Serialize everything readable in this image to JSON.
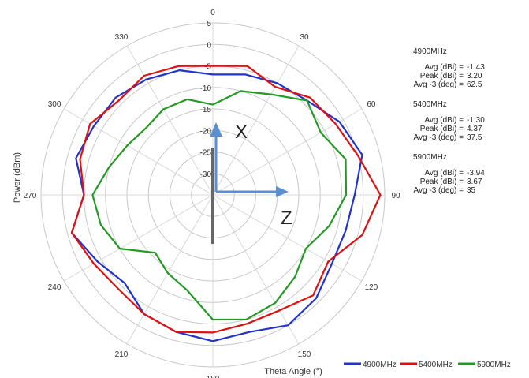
{
  "chart_data": {
    "type": "polar-line",
    "title": "",
    "xlabel": "Theta Angle (°)",
    "ylabel": "Power (dBm)",
    "rlim": [
      -35,
      5
    ],
    "ring_values": [
      -30,
      -25,
      -20,
      -15,
      -10,
      -5,
      0,
      5
    ],
    "ring_labels": [
      "-30",
      "-25",
      "-20",
      "-15",
      "-10",
      "-5",
      "0",
      "5"
    ],
    "angle_labels": [
      "0",
      "30",
      "60",
      "90",
      "120",
      "150",
      "180",
      "210",
      "240",
      "270",
      "300",
      "330"
    ],
    "legend_position": "bottom-right",
    "arrow_labels": {
      "x": "X",
      "z": "Z"
    },
    "series": [
      {
        "name": "4900MHz",
        "color": "#2233cc",
        "angles": [
          0,
          15,
          30,
          45,
          60,
          75,
          90,
          105,
          120,
          135,
          150,
          165,
          180,
          195,
          210,
          225,
          240,
          255,
          270,
          285,
          300,
          315,
          330,
          345
        ],
        "values": [
          -7,
          -6,
          -5,
          -4,
          -1,
          1,
          -2,
          -3,
          -3,
          -1,
          0,
          -2,
          -1,
          -2,
          -3,
          -6,
          -4,
          -1,
          -5,
          -2,
          -3,
          -3,
          -4,
          -5
        ],
        "stats": {
          "avg_label": "Avg (dBi) =",
          "avg": "-1.43",
          "peak_label": "Peak (dBi) =",
          "peak": "3.20",
          "avg3_label": "Avg -3 (deg) =",
          "avg3": "62.5"
        }
      },
      {
        "name": "5400MHz",
        "color": "#dd1111",
        "angles": [
          0,
          15,
          30,
          45,
          60,
          75,
          90,
          105,
          120,
          135,
          150,
          165,
          180,
          195,
          210,
          225,
          240,
          255,
          270,
          285,
          300,
          315,
          330,
          345
        ],
        "values": [
          -5,
          -4,
          -6,
          -3,
          -2,
          0,
          4,
          1,
          -4,
          -2,
          -4,
          -4,
          -3,
          -2,
          -3,
          -4,
          -3,
          -1,
          -5,
          -3,
          -2,
          -4,
          -3,
          -4
        ],
        "stats": {
          "avg_label": "Avg (dBi) =",
          "avg": "-1.30",
          "peak_label": "Peak (dBi) =",
          "peak": "4.37",
          "avg3_label": "Avg -3 (deg) =",
          "avg3": "37.5"
        }
      },
      {
        "name": "5900MHz",
        "color": "#229922",
        "angles": [
          0,
          15,
          30,
          45,
          60,
          75,
          90,
          105,
          120,
          135,
          150,
          165,
          180,
          195,
          210,
          225,
          240,
          255,
          270,
          285,
          300,
          315,
          330,
          345
        ],
        "values": [
          -14,
          -10,
          -8,
          -4,
          -6,
          -3,
          -4,
          -7,
          -10,
          -8,
          -6,
          -5,
          -6,
          -12,
          -14,
          -16,
          -10,
          -8,
          -7,
          -10,
          -12,
          -13,
          -12,
          -12
        ],
        "stats": {
          "avg_label": "Avg (dBi) =",
          "avg": "-3.94",
          "peak_label": "Peak (dBi) =",
          "peak": "3.67",
          "avg3_label": "Avg -3 (deg) =",
          "avg3": "35"
        }
      }
    ]
  }
}
